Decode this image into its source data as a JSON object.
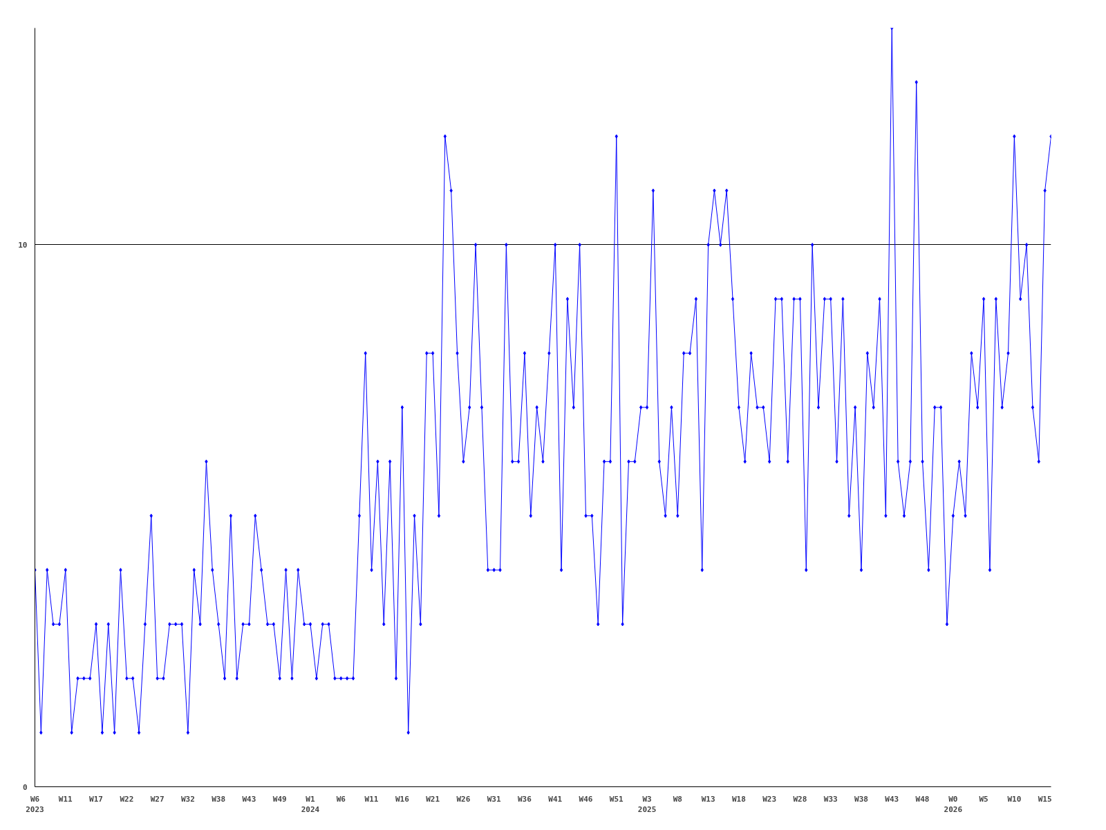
{
  "chart_data": {
    "type": "line",
    "categories": [
      "W6\n2023",
      null,
      null,
      null,
      null,
      "W11",
      null,
      null,
      null,
      null,
      "W17",
      null,
      null,
      null,
      null,
      "W22",
      null,
      null,
      null,
      null,
      "W27",
      null,
      null,
      null,
      null,
      "W32",
      null,
      null,
      null,
      null,
      "W38",
      null,
      null,
      null,
      null,
      "W43",
      null,
      null,
      null,
      null,
      "W49",
      null,
      null,
      null,
      null,
      "W1\n2024",
      null,
      null,
      null,
      null,
      "W6",
      null,
      null,
      null,
      null,
      "W11",
      null,
      null,
      null,
      null,
      "W16",
      null,
      null,
      null,
      null,
      "W21",
      null,
      null,
      null,
      null,
      "W26",
      null,
      null,
      null,
      null,
      "W31",
      null,
      null,
      null,
      null,
      "W36",
      null,
      null,
      null,
      null,
      "W41",
      null,
      null,
      null,
      null,
      "W46",
      null,
      null,
      null,
      null,
      "W51",
      null,
      null,
      null,
      null,
      "W3\n2025",
      null,
      null,
      null,
      null,
      "W8",
      null,
      null,
      null,
      null,
      "W13",
      null,
      null,
      null,
      null,
      "W18",
      null,
      null,
      null,
      null,
      "W23",
      null,
      null,
      null,
      null,
      "W28",
      null,
      null,
      null,
      null,
      "W33",
      null,
      null,
      null,
      null,
      "W38",
      null,
      null,
      null,
      null,
      "W43",
      null,
      null,
      null,
      null,
      "W48",
      null,
      null,
      null,
      null,
      "W0\n2026",
      null,
      null,
      null,
      null,
      "W5",
      null,
      null,
      null,
      null,
      "W10",
      null,
      null,
      null,
      null,
      "W15",
      null
    ],
    "series": [
      {
        "color": "#0000ff",
        "values": [
          4,
          1,
          4,
          3,
          3,
          4,
          1,
          2,
          2,
          2,
          3,
          1,
          3,
          1,
          4,
          2,
          2,
          1,
          3,
          5,
          2,
          2,
          3,
          3,
          3,
          1,
          4,
          3,
          6,
          4,
          3,
          2,
          5,
          2,
          3,
          3,
          5,
          4,
          3,
          3,
          2,
          4,
          2,
          4,
          3,
          3,
          2,
          3,
          3,
          2,
          2,
          2,
          2,
          5,
          8,
          4,
          6,
          3,
          6,
          2,
          7,
          1,
          5,
          3,
          8,
          8,
          5,
          12,
          11,
          8,
          6,
          7,
          10,
          7,
          4,
          4,
          4,
          10,
          6,
          6,
          8,
          5,
          7,
          6,
          8,
          10,
          4,
          9,
          7,
          10,
          5,
          5,
          3,
          6,
          6,
          12,
          3,
          6,
          6,
          7,
          7,
          11,
          6,
          5,
          7,
          5,
          8,
          8,
          9,
          4,
          10,
          11,
          10,
          11,
          9,
          7,
          6,
          8,
          7,
          7,
          6,
          9,
          9,
          6,
          9,
          9,
          4,
          10,
          7,
          9,
          9,
          6,
          9,
          5,
          7,
          4,
          8,
          7,
          9,
          5,
          14,
          6,
          5,
          6,
          13,
          6,
          4,
          7,
          7,
          3,
          5,
          6,
          5,
          8,
          7,
          9,
          4,
          9,
          7,
          8,
          12,
          9,
          10,
          7,
          6,
          11,
          12
        ]
      }
    ],
    "ylim": [
      0,
      14
    ],
    "yticks": [
      0,
      10
    ],
    "grid": "y",
    "marker": "diamond",
    "line_style": "solid"
  }
}
